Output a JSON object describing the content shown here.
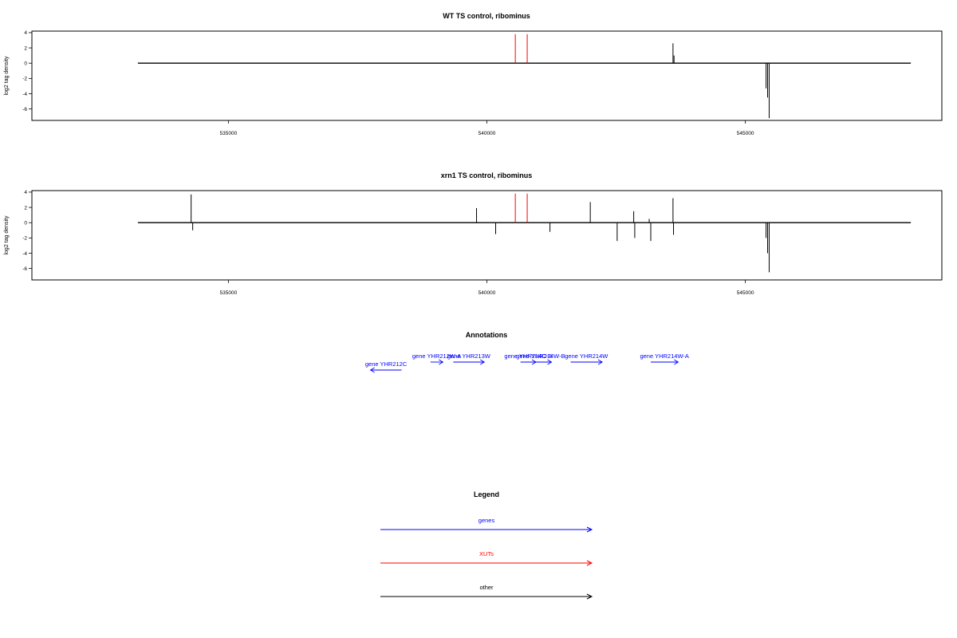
{
  "chart_data": [
    {
      "type": "line",
      "title": "WT TS control, ribominus",
      "xlabel": "",
      "ylabel": "log2 tag density",
      "xlim": [
        531200,
        548800
      ],
      "ylim": [
        -7.5,
        4.2
      ],
      "x_ticks": [
        535000,
        540000,
        545000
      ],
      "x_tick_labels": [
        "535000",
        "540000",
        "545000"
      ],
      "y_ticks": [
        4,
        2,
        0,
        -2,
        -4,
        -6
      ],
      "y_tick_labels": [
        "4",
        "2",
        "0",
        "-2",
        "-4",
        "-6"
      ],
      "grid": false,
      "baseline": {
        "x_start": 533250,
        "x_end": 548200,
        "y": 0
      },
      "series": [
        {
          "color": "#000000",
          "spikes": [
            {
              "x": 543600,
              "y0": 0,
              "y1": 2.6
            },
            {
              "x": 543620,
              "y0": 0,
              "y1": 1.0
            },
            {
              "x": 545400,
              "y0": 0,
              "y1": -3.3
            },
            {
              "x": 545430,
              "y0": 0,
              "y1": -4.5
            },
            {
              "x": 545460,
              "y0": 0,
              "y1": -7.2
            }
          ]
        },
        {
          "color": "#ff0000",
          "spikes": [
            {
              "x": 540550,
              "y0": 0,
              "y1": 3.8
            },
            {
              "x": 540780,
              "y0": 0,
              "y1": 3.8
            }
          ]
        }
      ]
    },
    {
      "type": "line",
      "title": "xrn1 TS control, ribominus",
      "xlabel": "",
      "ylabel": "log2 tag density",
      "xlim": [
        531200,
        548800
      ],
      "ylim": [
        -7.5,
        4.2
      ],
      "x_ticks": [
        535000,
        540000,
        545000
      ],
      "x_tick_labels": [
        "535000",
        "540000",
        "545000"
      ],
      "y_ticks": [
        4,
        2,
        0,
        -2,
        -4,
        -6
      ],
      "y_tick_labels": [
        "4",
        "2",
        "0",
        "-2",
        "-4",
        "-6"
      ],
      "grid": false,
      "baseline": {
        "x_start": 533250,
        "x_end": 548200,
        "y": 0
      },
      "series": [
        {
          "color": "#000000",
          "spikes": [
            {
              "x": 534280,
              "y0": 0,
              "y1": 3.7
            },
            {
              "x": 534310,
              "y0": 0,
              "y1": -1.0
            },
            {
              "x": 539800,
              "y0": 0,
              "y1": 1.9
            },
            {
              "x": 540170,
              "y0": 0,
              "y1": -1.5
            },
            {
              "x": 541220,
              "y0": 0,
              "y1": -1.2
            },
            {
              "x": 542000,
              "y0": 0,
              "y1": 2.7
            },
            {
              "x": 542520,
              "y0": 0,
              "y1": -2.4
            },
            {
              "x": 542840,
              "y0": 0,
              "y1": 1.5
            },
            {
              "x": 542860,
              "y0": 0,
              "y1": -2.0
            },
            {
              "x": 543140,
              "y0": 0,
              "y1": 0.5
            },
            {
              "x": 543170,
              "y0": 0,
              "y1": -2.4
            },
            {
              "x": 543600,
              "y0": 0,
              "y1": 3.2
            },
            {
              "x": 543610,
              "y0": 0,
              "y1": -1.6
            },
            {
              "x": 545400,
              "y0": 0,
              "y1": -2.0
            },
            {
              "x": 545430,
              "y0": 0,
              "y1": -4.0
            },
            {
              "x": 545460,
              "y0": 0,
              "y1": -6.5
            }
          ]
        },
        {
          "color": "#ff0000",
          "spikes": [
            {
              "x": 540550,
              "y0": 0,
              "y1": 3.8
            },
            {
              "x": 540780,
              "y0": 0,
              "y1": 3.8
            }
          ]
        }
      ]
    }
  ],
  "annotations": {
    "title": "Annotations",
    "color": "#0000ff",
    "genes": [
      {
        "label": "gene YHR212C",
        "direction": "reverse",
        "start": 537750,
        "end": 538350,
        "row": 2
      },
      {
        "label": "gene YHR212W-A",
        "direction": "forward",
        "start": 538910,
        "end": 539150,
        "row": 1
      },
      {
        "label": "gene YHR213W",
        "direction": "forward",
        "start": 539350,
        "end": 539950,
        "row": 1
      },
      {
        "label": "gene YHR214C-B",
        "direction": "forward",
        "start": 540650,
        "end": 540950,
        "row": 1
      },
      {
        "label": "gene YHR214W-B",
        "direction": "forward",
        "start": 540830,
        "end": 541250,
        "row": 1
      },
      {
        "label": "gene YHR214W",
        "direction": "forward",
        "start": 541620,
        "end": 542230,
        "row": 1
      },
      {
        "label": "gene YHR214W-A",
        "direction": "forward",
        "start": 543170,
        "end": 543700,
        "row": 1
      }
    ]
  },
  "legend": {
    "title": "Legend",
    "items": [
      {
        "label": "genes",
        "color": "#0000ff"
      },
      {
        "label": "XUTs",
        "color": "#ff0000"
      },
      {
        "label": "other",
        "color": "#000000"
      }
    ]
  }
}
